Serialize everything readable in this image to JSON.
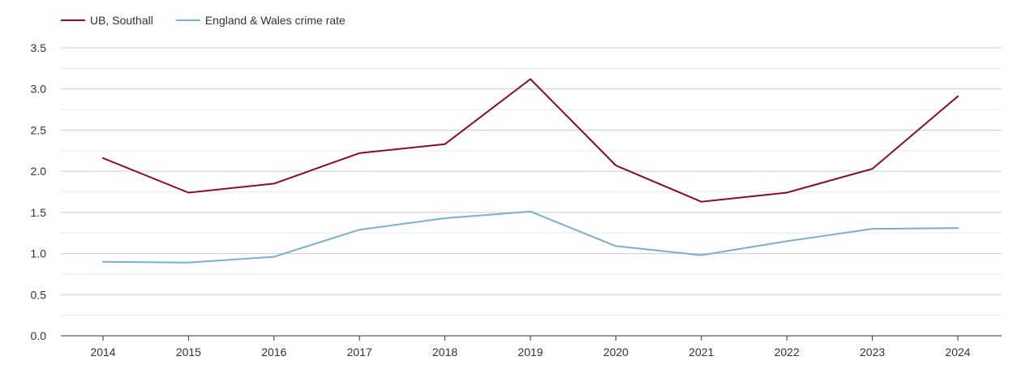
{
  "chart_data": {
    "type": "line",
    "title": "",
    "xlabel": "",
    "ylabel": "",
    "categories": [
      "2014",
      "2015",
      "2016",
      "2017",
      "2018",
      "2019",
      "2020",
      "2021",
      "2022",
      "2023",
      "2024"
    ],
    "ylim": [
      0,
      3.5
    ],
    "y_ticks": [
      "0.0",
      "0.5",
      "1.0",
      "1.5",
      "2.0",
      "2.5",
      "3.0",
      "3.5"
    ],
    "y_tick_values": [
      0,
      0.5,
      1.0,
      1.5,
      2.0,
      2.5,
      3.0,
      3.5
    ],
    "grid": true,
    "legend_position": "top-left",
    "series": [
      {
        "name": "UB, Southall",
        "color": "#8b0a2e",
        "values": [
          2.16,
          1.74,
          1.85,
          2.22,
          2.33,
          3.12,
          2.07,
          1.63,
          1.74,
          2.03,
          2.91
        ]
      },
      {
        "name": "England & Wales crime rate",
        "color": "#7aafcf",
        "values": [
          0.9,
          0.89,
          0.96,
          1.29,
          1.43,
          1.51,
          1.09,
          0.98,
          1.15,
          1.3,
          1.31
        ]
      }
    ]
  }
}
